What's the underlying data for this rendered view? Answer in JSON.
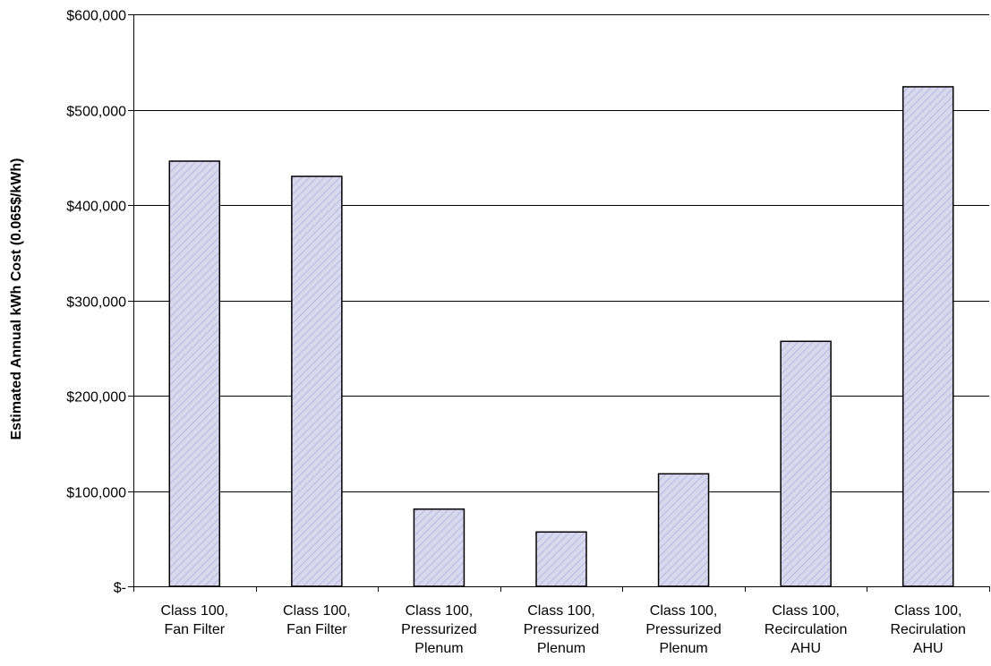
{
  "chart_data": {
    "type": "bar",
    "title": "",
    "xlabel": "",
    "ylabel": "Estimated Annual kWh Cost (0.065$/kWh)",
    "ylim": [
      0,
      600000
    ],
    "yticks": [
      {
        "value": 0,
        "label": "$-"
      },
      {
        "value": 100000,
        "label": "$100,000"
      },
      {
        "value": 200000,
        "label": "$200,000"
      },
      {
        "value": 300000,
        "label": "$300,000"
      },
      {
        "value": 400000,
        "label": "$400,000"
      },
      {
        "value": 500000,
        "label": "$500,000"
      },
      {
        "value": 600000,
        "label": "$600,000"
      }
    ],
    "categories": [
      [
        "Class 100,",
        "Fan Filter"
      ],
      [
        "Class 100,",
        "Fan Filter"
      ],
      [
        "Class 100,",
        "Pressurized",
        "Plenum"
      ],
      [
        "Class 100,",
        "Pressurized",
        "Plenum"
      ],
      [
        "Class 100,",
        "Pressurized",
        "Plenum"
      ],
      [
        "Class 100,",
        "Recirculation",
        "AHU"
      ],
      [
        "Class 100,",
        "Recirulation",
        "AHU"
      ]
    ],
    "values": [
      446000,
      430000,
      81000,
      57000,
      118000,
      257000,
      524000
    ],
    "grid": true,
    "legend": "none",
    "colors": {
      "bar_fill": "#d8d8ef",
      "bar_hatch": "#b8b8dc",
      "bar_stroke": "#000000",
      "grid": "#000000"
    }
  }
}
